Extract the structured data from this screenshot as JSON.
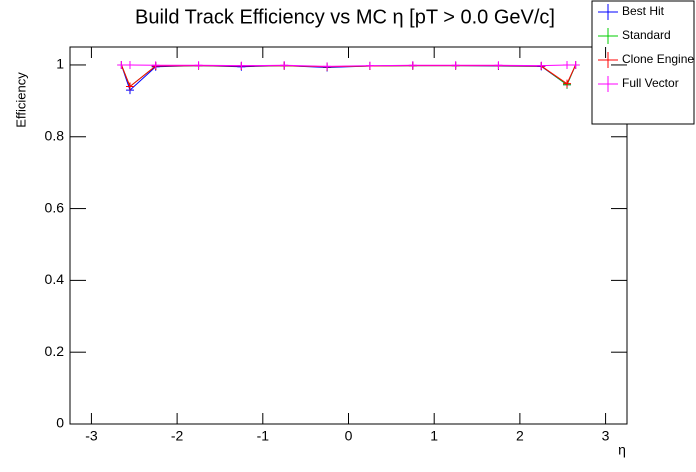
{
  "chart_data": {
    "type": "line",
    "title": "Build Track Efficiency vs MC η [pT > 0.0 GeV/c]",
    "x_label": "η",
    "y_label": "Efficiency",
    "x": [
      -2.65,
      -2.55,
      -2.25,
      -1.75,
      -1.25,
      -0.75,
      -0.25,
      0.25,
      0.75,
      1.25,
      1.75,
      2.25,
      2.55,
      2.65
    ],
    "series": [
      {
        "name": "Best Hit",
        "color": "#0000ff",
        "values": [
          1.0,
          0.93,
          0.995,
          0.998,
          0.995,
          0.998,
          0.993,
          0.997,
          0.998,
          0.998,
          0.997,
          0.996,
          0.945,
          1.0
        ]
      },
      {
        "name": "Standard",
        "color": "#00cc00",
        "values": [
          1.0,
          0.94,
          0.997,
          0.998,
          0.997,
          0.998,
          0.995,
          0.997,
          0.998,
          0.998,
          0.998,
          0.997,
          0.945,
          1.0
        ]
      },
      {
        "name": "Clone Engine",
        "color": "#ff0000",
        "values": [
          1.0,
          0.94,
          0.997,
          0.998,
          0.997,
          0.998,
          0.995,
          0.997,
          0.998,
          0.998,
          0.998,
          0.997,
          0.948,
          1.0
        ]
      },
      {
        "name": "Full Vector",
        "color": "#ff00ff",
        "values": [
          1.0,
          1.0,
          0.999,
          0.999,
          0.998,
          0.999,
          0.996,
          0.998,
          0.999,
          0.999,
          0.999,
          0.998,
          1.0,
          1.0
        ]
      }
    ],
    "xlim": [
      -3.25,
      3.25
    ],
    "xticks": [
      -3,
      -2,
      -1,
      0,
      1,
      2,
      3
    ],
    "ylim": [
      0,
      1.05
    ],
    "yticks": [
      0,
      0.2,
      0.4,
      0.6,
      0.8,
      1
    ],
    "legend": "top-right"
  }
}
